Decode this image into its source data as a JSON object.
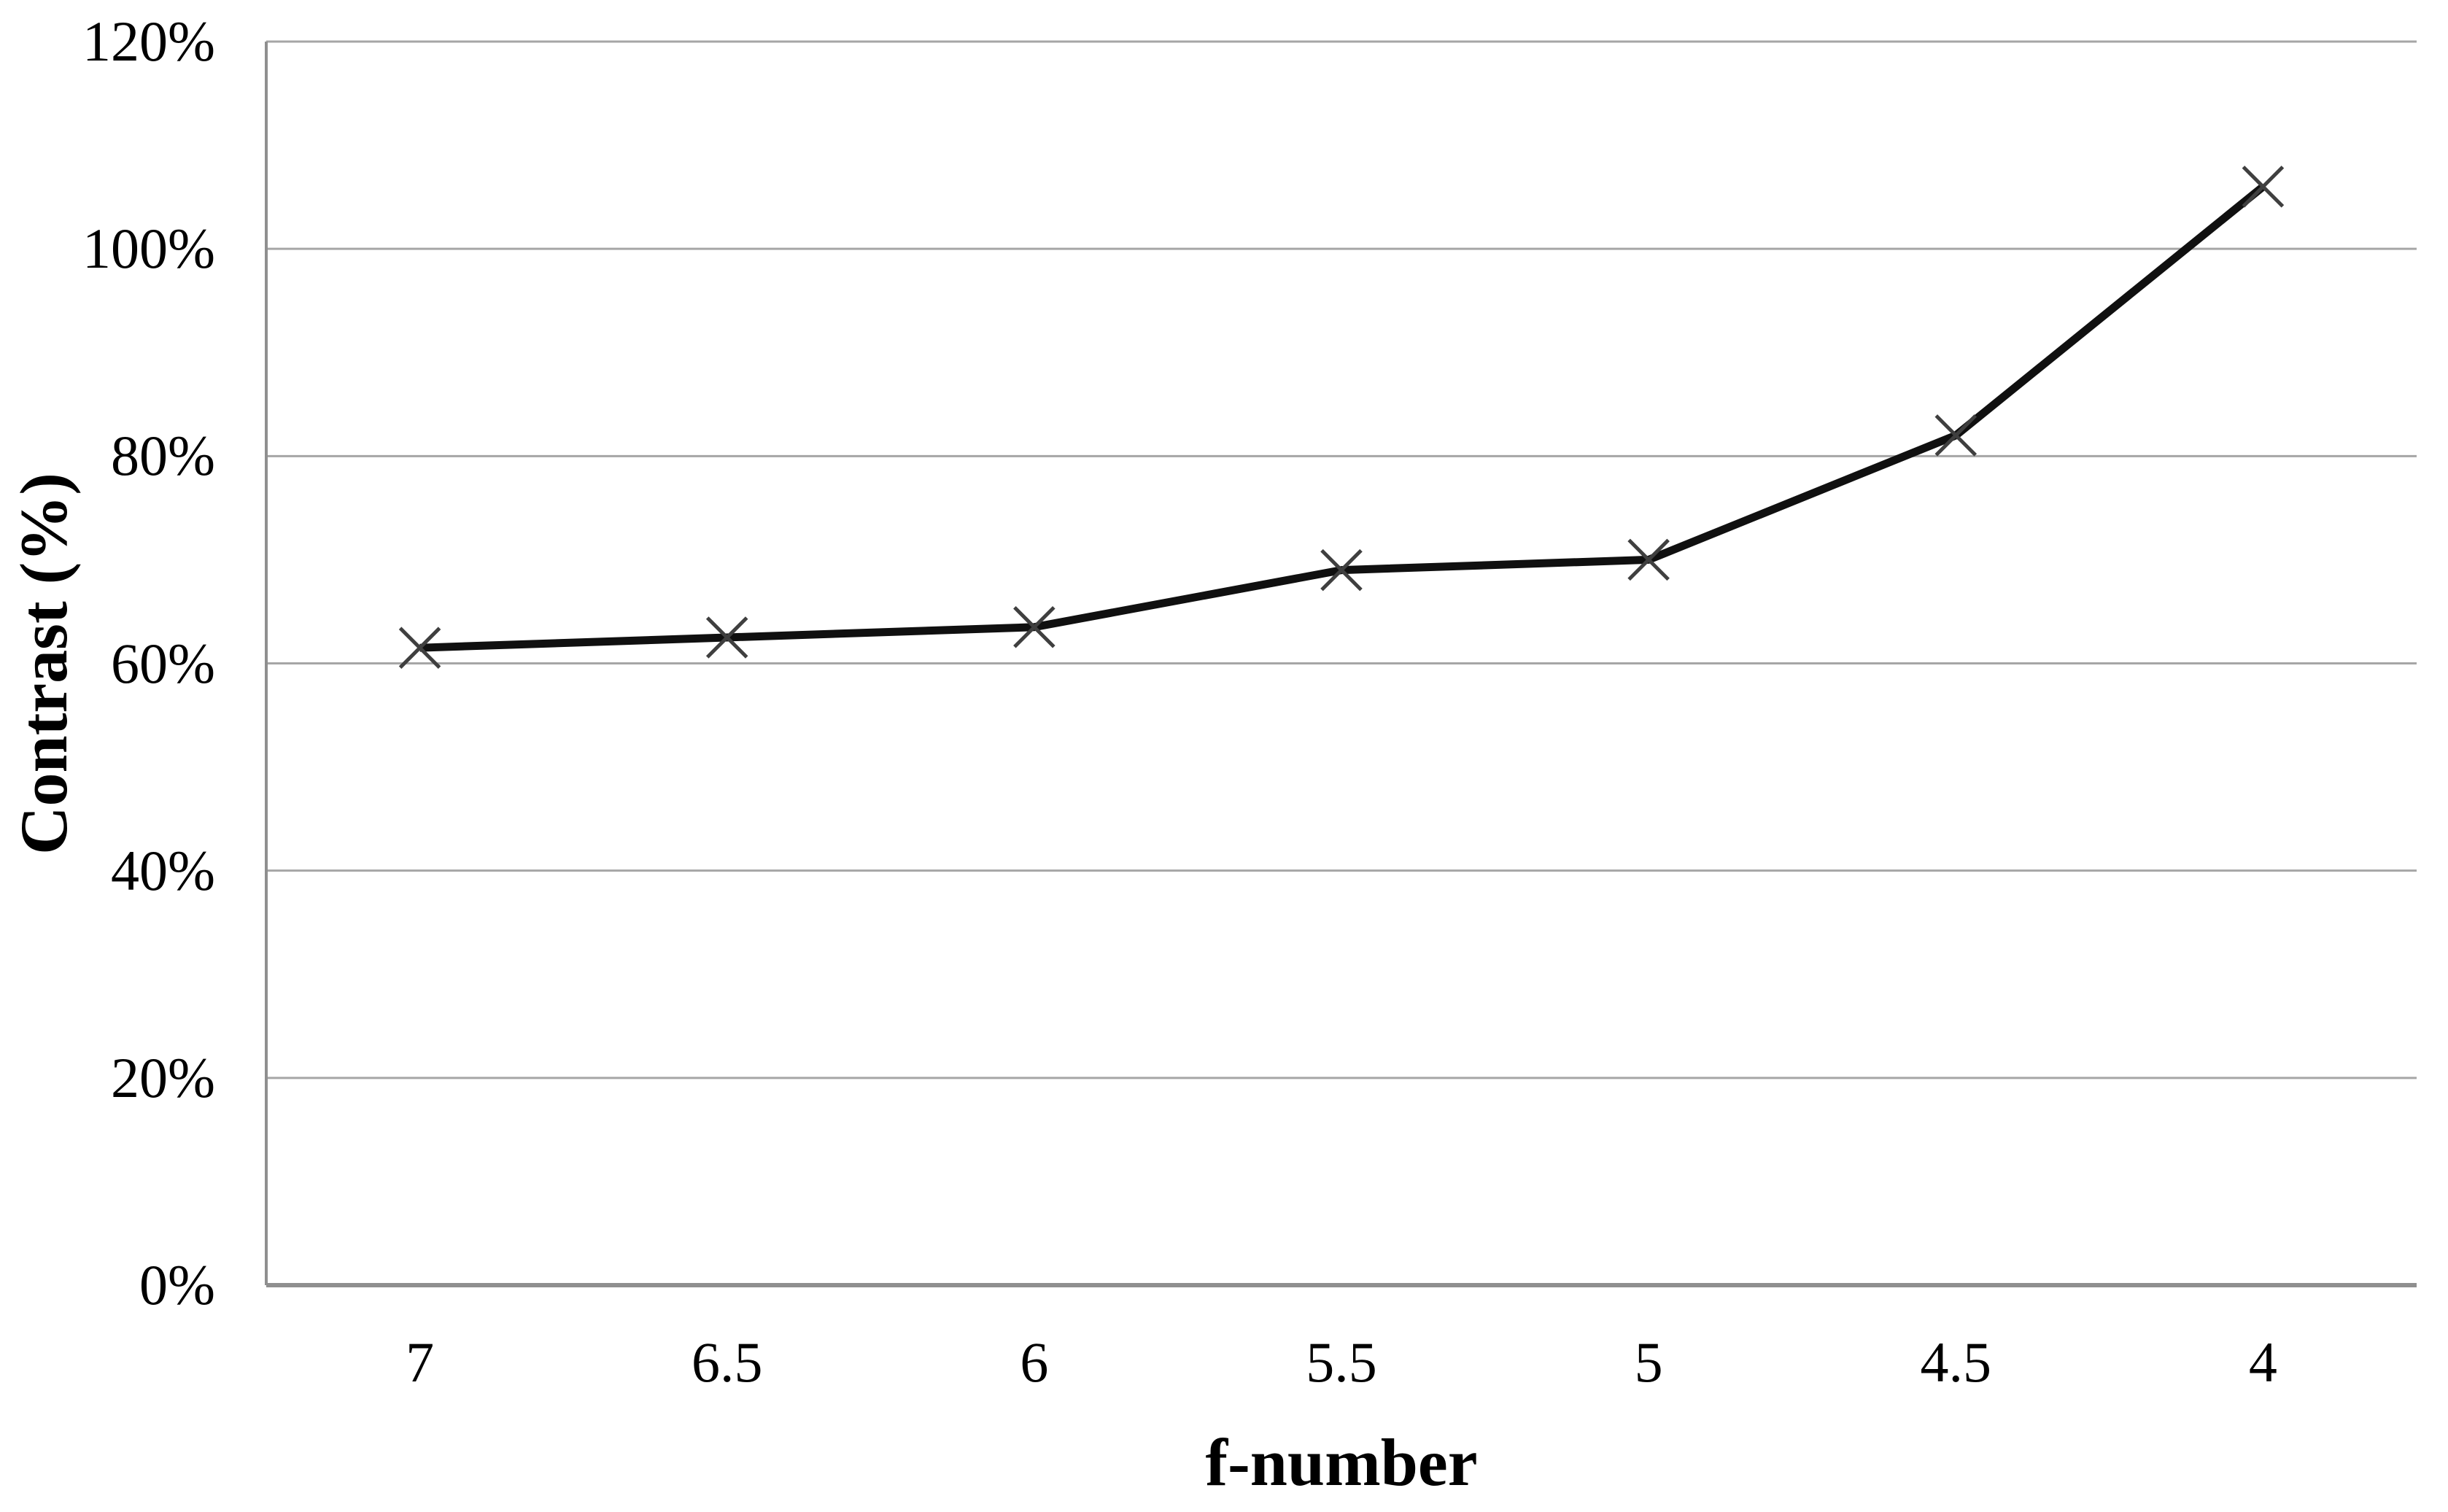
{
  "chart_data": {
    "type": "line",
    "title": "",
    "xlabel": "f-number",
    "ylabel": "Contrast (%)",
    "categories": [
      "7",
      "6.5",
      "6",
      "5.5",
      "5",
      "4.5",
      "4"
    ],
    "series": [
      {
        "name": "Contrast",
        "values": [
          61.5,
          62.5,
          63.5,
          69,
          70,
          82,
          106
        ]
      }
    ],
    "y_tick_labels": [
      "0%",
      "20%",
      "40%",
      "60%",
      "80%",
      "100%",
      "120%"
    ],
    "ylim": [
      0,
      120
    ],
    "y_tick_step": 20,
    "grid": "horizontal",
    "legend": "none",
    "marker": "x"
  },
  "colors": {
    "background": "#ffffff",
    "series_line": "#101010",
    "marker": "#3f3f3f",
    "gridline": "#a6a6a6",
    "axis_line": "#8f8f8f",
    "text": "#000000"
  }
}
